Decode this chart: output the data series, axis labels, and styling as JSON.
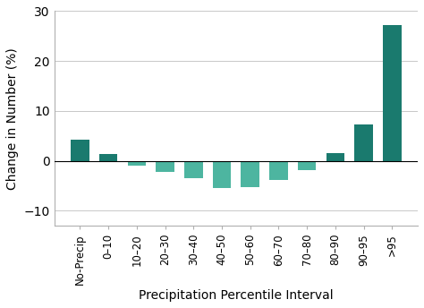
{
  "categories": [
    "No-Precip",
    "0–10",
    "10–20",
    "20–30",
    "30–40",
    "40–50",
    "50–60",
    "60–70",
    "70–80",
    "80–90",
    "90–95",
    ">95"
  ],
  "values": [
    4.2,
    1.4,
    -1.0,
    -2.2,
    -3.5,
    -5.5,
    -5.2,
    -3.8,
    -1.8,
    1.6,
    7.2,
    27.2
  ],
  "bar_colors": [
    "#1a7a6e",
    "#1a7a6e",
    "#4db5a0",
    "#4db5a0",
    "#4db5a0",
    "#4db5a0",
    "#4db5a0",
    "#4db5a0",
    "#4db5a0",
    "#1a7a6e",
    "#1a7a6e",
    "#1a7a6e"
  ],
  "xlabel": "Precipitation Percentile Interval",
  "ylabel": "Change in Number (%)",
  "ylim": [
    -13,
    30
  ],
  "yticks": [
    -10,
    0,
    10,
    20,
    30
  ],
  "background_color": "#ffffff",
  "grid_color": "#c8c8c8",
  "bar_width": 0.65,
  "xlabel_fontsize": 10,
  "ylabel_fontsize": 10,
  "tick_fontsize": 8.5
}
